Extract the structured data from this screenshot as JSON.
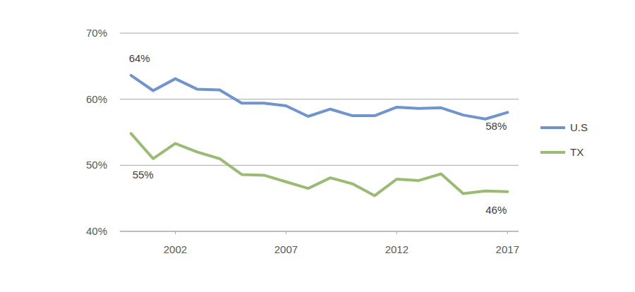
{
  "chart_data": {
    "type": "line",
    "x": [
      2000,
      2001,
      2002,
      2003,
      2004,
      2005,
      2006,
      2007,
      2008,
      2009,
      2010,
      2011,
      2012,
      2013,
      2014,
      2015,
      2016,
      2017
    ],
    "xlim": [
      1999.5,
      2017.5
    ],
    "xticks": [
      2002,
      2007,
      2012,
      2017
    ],
    "ylim": [
      40,
      70
    ],
    "yticks": [
      {
        "value": 40,
        "label": "40%"
      },
      {
        "value": 50,
        "label": "50%"
      },
      {
        "value": 60,
        "label": "60%"
      },
      {
        "value": 70,
        "label": "70%"
      }
    ],
    "grid": true,
    "legend": "right",
    "series": [
      {
        "name": "U.S",
        "color": "#7094cd",
        "values": [
          63.6,
          61.3,
          63.1,
          61.5,
          61.4,
          59.4,
          59.4,
          59.0,
          57.4,
          58.5,
          57.5,
          57.5,
          58.8,
          58.6,
          58.7,
          57.6,
          57.0,
          58.0
        ]
      },
      {
        "name": "TX",
        "color": "#9bbb75",
        "values": [
          54.8,
          51.0,
          53.3,
          52.0,
          51.0,
          48.6,
          48.5,
          47.5,
          46.5,
          48.1,
          47.2,
          45.4,
          47.9,
          47.7,
          48.7,
          45.7,
          46.1,
          46.0
        ]
      }
    ],
    "annotations": [
      "64%",
      "55%",
      "58%",
      "46%"
    ]
  }
}
